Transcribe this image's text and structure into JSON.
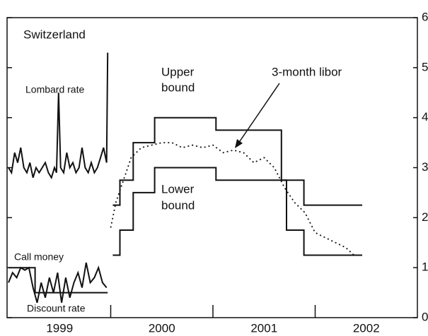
{
  "chart_data": {
    "type": "line",
    "title": "Switzerland",
    "xlim": [
      1999,
      2003
    ],
    "ylim": [
      0,
      6
    ],
    "yticks": [
      0,
      1,
      2,
      3,
      4,
      5,
      6
    ],
    "xtick_marks": [
      2000,
      2001,
      2002
    ],
    "xticks": [
      {
        "value": 1999.5,
        "label": "1999"
      },
      {
        "value": 2000.5,
        "label": "2000"
      },
      {
        "value": 2001.5,
        "label": "2001"
      },
      {
        "value": 2002.5,
        "label": "2002"
      }
    ],
    "series": [
      {
        "color": "#111111",
        "style": "solid",
        "x": [
          2000.02,
          2000.09,
          2000.09,
          2000.22,
          2000.22,
          2000.43,
          2000.43,
          2001.03,
          2001.03,
          2001.67,
          2001.67,
          2001.89,
          2001.89,
          2002.46
        ],
        "values": [
          2.25,
          2.25,
          2.75,
          2.75,
          3.5,
          3.5,
          4,
          4,
          3.75,
          3.75,
          2.75,
          2.75,
          2.25,
          2.25
        ]
      },
      {
        "color": "#111111",
        "style": "solid",
        "x": [
          2000.02,
          2000.09,
          2000.09,
          2000.22,
          2000.22,
          2000.43,
          2000.43,
          2001.03,
          2001.03,
          2001.72,
          2001.72,
          2001.89,
          2001.89,
          2002.46
        ],
        "values": [
          1.25,
          1.25,
          1.75,
          1.75,
          2.5,
          2.5,
          3,
          3,
          2.75,
          2.75,
          1.75,
          1.75,
          1.25,
          1.25
        ]
      },
      {
        "color": "#111111",
        "style": "dotted",
        "x": [
          2000.0,
          2000.05,
          2000.1,
          2000.15,
          2000.2,
          2000.3,
          2000.4,
          2000.5,
          2000.6,
          2000.7,
          2000.8,
          2000.9,
          2001.0,
          2001.1,
          2001.2,
          2001.3,
          2001.4,
          2001.5,
          2001.6,
          2001.7,
          2001.8,
          2001.9,
          2002.0,
          2002.1,
          2002.2,
          2002.3,
          2002.38
        ],
        "values": [
          1.8,
          2.3,
          2.6,
          2.9,
          3.2,
          3.4,
          3.45,
          3.5,
          3.5,
          3.4,
          3.45,
          3.4,
          3.45,
          3.3,
          3.35,
          3.3,
          3.1,
          3.2,
          3.0,
          2.6,
          2.3,
          2.1,
          1.7,
          1.6,
          1.5,
          1.4,
          1.25
        ]
      },
      {
        "color": "#111111",
        "style": "solid",
        "x": [
          1999.0,
          1999.03,
          1999.06,
          1999.09,
          1999.12,
          1999.15,
          1999.18,
          1999.21,
          1999.24,
          1999.27,
          1999.3,
          1999.33,
          1999.36,
          1999.39,
          1999.42,
          1999.45,
          1999.47,
          1999.49,
          1999.51,
          1999.54,
          1999.57,
          1999.6,
          1999.63,
          1999.66,
          1999.69,
          1999.72,
          1999.75,
          1999.78,
          1999.81,
          1999.84,
          1999.87,
          1999.9,
          1999.93,
          1999.96,
          1999.97
        ],
        "values": [
          3.0,
          2.9,
          3.3,
          3.1,
          3.4,
          3.0,
          2.9,
          3.1,
          2.8,
          3.0,
          2.9,
          3.0,
          3.1,
          2.9,
          2.8,
          3.0,
          2.9,
          4.5,
          3.0,
          2.9,
          3.3,
          3.0,
          3.1,
          2.9,
          3.0,
          3.4,
          3.0,
          2.9,
          3.1,
          2.9,
          3.0,
          3.2,
          3.4,
          3.1,
          5.3
        ]
      },
      {
        "color": "#111111",
        "style": "solid",
        "x": [
          1999.0,
          1999.04,
          1999.08,
          1999.12,
          1999.16,
          1999.2,
          1999.24,
          1999.28,
          1999.32,
          1999.36,
          1999.4,
          1999.44,
          1999.48,
          1999.52,
          1999.56,
          1999.6,
          1999.64,
          1999.68,
          1999.72,
          1999.76,
          1999.8,
          1999.84,
          1999.88,
          1999.92,
          1999.96
        ],
        "values": [
          0.7,
          0.9,
          0.8,
          1.0,
          0.95,
          1.0,
          0.6,
          0.3,
          0.7,
          0.4,
          0.8,
          0.5,
          0.9,
          0.3,
          0.8,
          0.4,
          0.7,
          0.9,
          0.6,
          1.1,
          0.7,
          0.8,
          1.0,
          0.7,
          0.6
        ]
      },
      {
        "color": "#111111",
        "style": "solid",
        "x": [
          1999.0,
          1999.26,
          1999.26,
          1999.97
        ],
        "values": [
          1,
          1,
          0.5,
          0.5
        ]
      }
    ],
    "annotations": [
      "Lombard rate",
      "Upper",
      "bound",
      "Lower",
      "bound",
      "3-month libor",
      "Call money",
      "Discount rate"
    ]
  }
}
